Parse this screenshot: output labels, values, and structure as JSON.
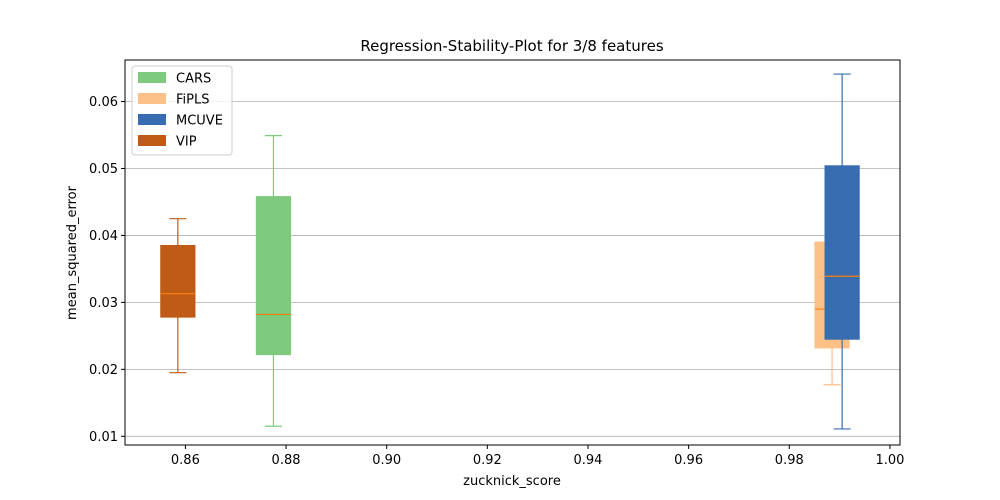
{
  "chart_data": {
    "type": "box",
    "title": "Regression-Stability-Plot for 3/8 features",
    "xlabel": "zucknick_score",
    "ylabel": "mean_squared_error",
    "xlim": [
      0.848,
      1.002
    ],
    "ylim": [
      0.0087,
      0.0662
    ],
    "xticks": [
      "0.86",
      "0.88",
      "0.90",
      "0.92",
      "0.94",
      "0.96",
      "0.98",
      "1.00"
    ],
    "yticks": [
      "0.01",
      "0.02",
      "0.03",
      "0.04",
      "0.05",
      "0.06"
    ],
    "grid": "horizontal",
    "legend_position": "top-left",
    "series": [
      {
        "name": "CARS",
        "color": "#7fc97f",
        "x": 0.8775,
        "width": 0.0068,
        "whislo": 0.0115,
        "q1": 0.0222,
        "med": 0.0282,
        "q3": 0.0458,
        "whishi": 0.0549
      },
      {
        "name": "FiPLS",
        "color": "#fdc086",
        "x": 0.9885,
        "width": 0.0068,
        "whislo": 0.0177,
        "q1": 0.0232,
        "med": 0.029,
        "q3": 0.039,
        "whishi": 0.039
      },
      {
        "name": "MCUVE",
        "color": "#386cb0",
        "x": 0.9905,
        "width": 0.0068,
        "whislo": 0.0111,
        "q1": 0.0245,
        "med": 0.0339,
        "q3": 0.0504,
        "whishi": 0.0641
      },
      {
        "name": "VIP",
        "color": "#bf5b17",
        "x": 0.8585,
        "width": 0.0068,
        "whislo": 0.0195,
        "q1": 0.0278,
        "med": 0.0313,
        "q3": 0.0385,
        "whishi": 0.0425
      }
    ],
    "median_color": "#ff7f0e"
  }
}
